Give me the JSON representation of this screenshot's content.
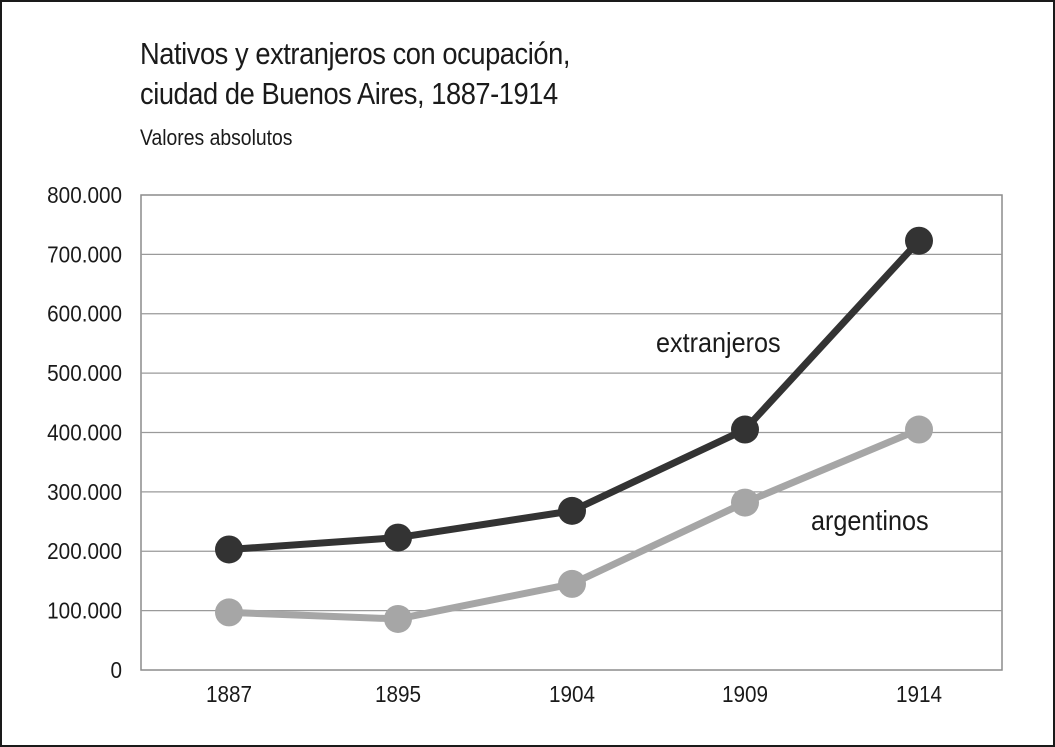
{
  "chart_data": {
    "type": "line",
    "title_line1": "Nativos y extranjeros con ocupación,",
    "title_line2": "ciudad de Buenos Aires, 1887-1914",
    "subtitle": "Valores absolutos",
    "categories": [
      "1887",
      "1895",
      "1904",
      "1909",
      "1914"
    ],
    "y_ticks": [
      "0",
      "100.000",
      "200.000",
      "300.000",
      "400.000",
      "500.000",
      "600.000",
      "700.000",
      "800.000"
    ],
    "ylim": [
      0,
      800000
    ],
    "grid": true,
    "series": [
      {
        "name": "extranjeros",
        "label": "extranjeros",
        "color": "#333333",
        "values": [
          203000,
          223000,
          268000,
          405000,
          723000
        ]
      },
      {
        "name": "argentinos",
        "label": "argentinos",
        "color": "#a6a6a6",
        "values": [
          97000,
          86000,
          145000,
          282000,
          405000
        ]
      }
    ]
  }
}
